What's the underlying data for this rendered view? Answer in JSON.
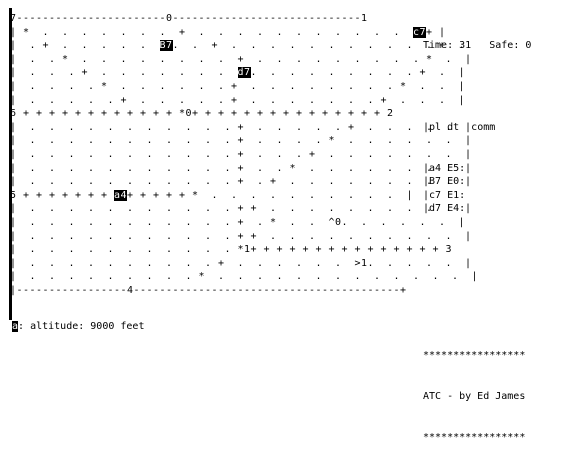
{
  "radar": {
    "rows": [
      {
        "segments": [
          {
            "text": "7-----------------------0-----------------------------1"
          }
        ]
      },
      {
        "segments": [
          {
            "text": "| *  .  .  .  .  .  .  .  +  .  .  .  .  .  .  .  .  .  .  .  "
          },
          {
            "text": "c7",
            "hl": true
          },
          {
            "text": "+ |"
          }
        ]
      },
      {
        "segments": [
          {
            "text": "|  . +  .  .  .  .  .  "
          },
          {
            "text": "B7",
            "hl": true
          },
          {
            "text": ".  .  +  .  .  .  .  .  .  .  .  .  .  . +  ."
          }
        ]
      },
      {
        "segments": [
          {
            "text": "|  .  . *  .  .  .  .  .  .  .  .  +  .  .  .  .  .  .  .  .  . *  .  |"
          }
        ]
      },
      {
        "segments": [
          {
            "text": "|  .  .  . +  .  .  .  .  .  .  .  "
          },
          {
            "text": "d7",
            "hl": true
          },
          {
            "text": ".  .  .  .  .  .  .  .  . +  .  |"
          }
        ]
      },
      {
        "segments": [
          {
            "text": "|  .  .  .  . *  .  .  .  .  .  . +  .  .  .  .  .  .  .  . *  .  .  |"
          }
        ]
      },
      {
        "segments": [
          {
            "text": "|  .  .  .  .  . +  .  .  .  .  . +  .  .  .  .  .  .  . +  .  .  .  |"
          }
        ]
      },
      {
        "segments": [
          {
            "text": "6 + + + + + + + + + + + + *0+ + + + + + + + + + + + + + + 2"
          }
        ]
      },
      {
        "segments": [
          {
            "text": "|  .  .  .  .  .  .  .  .  .  .  . +  .  .  .  .  . +  .  .  .  .  .  |"
          }
        ]
      },
      {
        "segments": [
          {
            "text": "|  .  .  .  .  .  .  .  .  .  .  . +  .  .  .  . *  .  .  .  .  .  .  |"
          }
        ]
      },
      {
        "segments": [
          {
            "text": "|  .  .  .  .  .  .  .  .  .  .  . +  .  .  . +  .  .  .  .  .  .  .  |"
          }
        ]
      },
      {
        "segments": [
          {
            "text": "|  .  .  .  .  .  .  .  .  .  .  . +  .  . *  .  .  .  .  .  .  .  .  |"
          }
        ]
      },
      {
        "segments": [
          {
            "text": "|  .  .  .  .  .  .  .  .  .  .  . +  . +  .  .  .  .  .  .  .  .  .  |"
          }
        ]
      },
      {
        "segments": [
          {
            "text": "5 + + + + + + + "
          },
          {
            "text": "a4",
            "hl": true
          },
          {
            "text": "+ + + + + *  .  .  .  .  .  .  .  .  .  .  |"
          }
        ]
      },
      {
        "segments": [
          {
            "text": "|  .  .  .  .  .  .  .  .  .  .  . + +  .  .  .  .  .  .  .  .  .  .  |"
          }
        ]
      },
      {
        "segments": [
          {
            "text": "|  .  .  .  .  .  .  .  .  .  .  . +  . *  .  .  ^0.  .  .  .  .  .  |"
          }
        ]
      },
      {
        "segments": [
          {
            "text": "|  .  .  .  .  .  .  .  .  .  .  . + +  .  .  .  .  .  .  .  .  .  .  |"
          }
        ]
      },
      {
        "segments": [
          {
            "text": "|  .  .  .  .  .  .  .  .  .  .  . *1+ + + + + + + + + + + + + + + 3"
          }
        ]
      },
      {
        "segments": [
          {
            "text": "|  .  .  .  .  .  .  .  .  .  . +  .  .  .  .  .  .  >1.  .  .  .  .  |"
          }
        ]
      },
      {
        "segments": [
          {
            "text": "|  .  .  .  .  .  .  .  .  . *  .  .  .  .  .  .  .  .  .  .  .  .  .  |"
          }
        ]
      },
      {
        "segments": [
          {
            "text": "|-----------------4-----------------------------------------+"
          }
        ]
      }
    ]
  },
  "info": {
    "time": "Time: 31",
    "safe": "Safe: 0",
    "header": "pl dt  comm",
    "planes": [
      "a4 E5:",
      "B7 E0:",
      "c7 E1:",
      "d7 E4:"
    ]
  },
  "status": {
    "cursor": "a",
    "text": ": altitude: 9000 feet"
  },
  "credits": {
    "border_top": "*****************",
    "title": "ATC - by Ed James",
    "border_bottom": "*****************"
  }
}
